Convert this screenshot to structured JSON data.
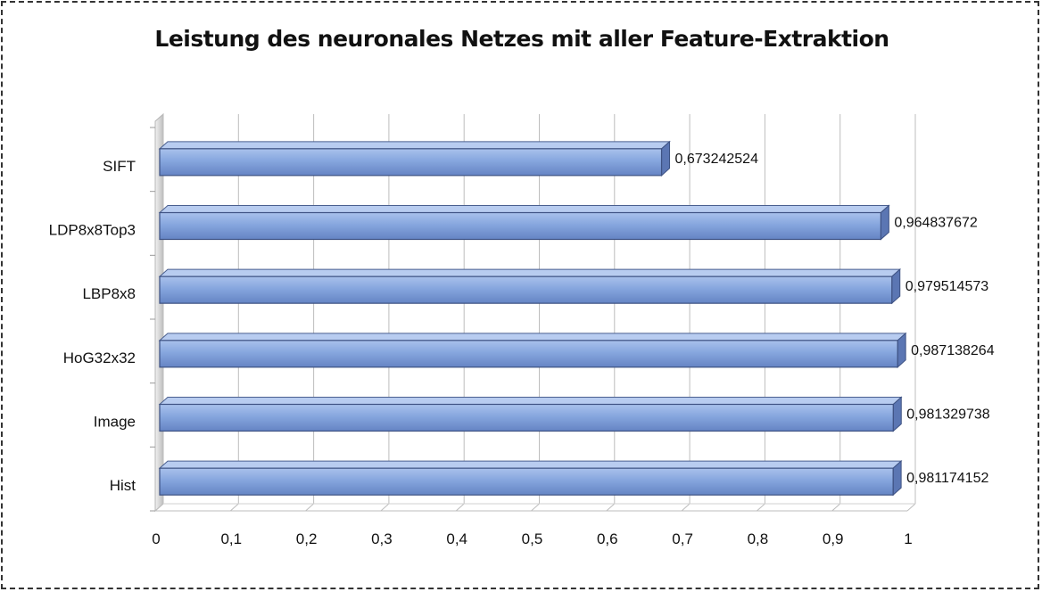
{
  "chart_data": {
    "type": "bar",
    "orientation": "horizontal",
    "title": "Leistung des neuronales Netzes mit aller Feature-Extraktion",
    "categories": [
      "Hist",
      "Image",
      "HoG32x32",
      "LBP8x8",
      "LDP8x8Top3",
      "SIFT"
    ],
    "values": [
      0.981174152,
      0.981329738,
      0.987138264,
      0.979514573,
      0.964837672,
      0.673242524
    ],
    "value_labels": [
      "0,981174152",
      "0,981329738",
      "0,987138264",
      "0,979514573",
      "0,964837672",
      "0,673242524"
    ],
    "xlim": [
      0,
      1
    ],
    "x_ticks": [
      0,
      0.1,
      0.2,
      0.3,
      0.4,
      0.5,
      0.6,
      0.7,
      0.8,
      0.9,
      1
    ],
    "x_tick_labels": [
      "0",
      "0,1",
      "0,2",
      "0,3",
      "0,4",
      "0,5",
      "0,6",
      "0,7",
      "0,8",
      "0,9",
      "1"
    ],
    "xlabel": "",
    "ylabel": "",
    "grid": true,
    "legend": "none",
    "style": "3d",
    "bar_color": "#7f9fd9"
  }
}
